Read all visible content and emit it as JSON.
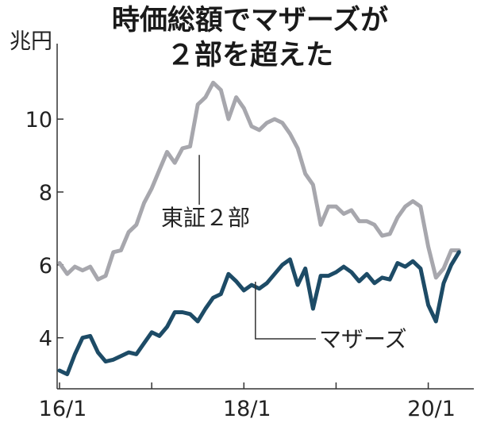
{
  "chart_data": {
    "type": "line",
    "title_line1": "時価総額でマザーズが",
    "title_line2": "２部を超えた",
    "unit": "兆円",
    "x_ticks": [
      "16/1",
      "18/1",
      "20/1"
    ],
    "y_ticks": [
      4,
      6,
      8,
      10
    ],
    "ylim": [
      2.6,
      11.2
    ],
    "x_range_months": [
      0,
      53
    ],
    "grid": false,
    "series": [
      {
        "name": "東証２部",
        "color": "#a7a7ad",
        "x": [
          0,
          1,
          2,
          3,
          4,
          5,
          6,
          7,
          8,
          9,
          10,
          11,
          12,
          13,
          14,
          15,
          16,
          17,
          18,
          19,
          20,
          21,
          22,
          23,
          24,
          25,
          26,
          27,
          28,
          29,
          30,
          31,
          32,
          33,
          34,
          35,
          36,
          37,
          38,
          39,
          40,
          41,
          42,
          43,
          44,
          45,
          46,
          47,
          48,
          49,
          50,
          51,
          52
        ],
        "values": [
          6.05,
          5.75,
          5.95,
          5.85,
          5.95,
          5.6,
          5.7,
          6.35,
          6.4,
          6.9,
          7.1,
          7.7,
          8.1,
          8.6,
          9.1,
          8.8,
          9.2,
          9.25,
          10.4,
          10.6,
          11.0,
          10.8,
          10.0,
          10.6,
          10.3,
          9.8,
          9.7,
          9.9,
          10.0,
          9.9,
          9.6,
          9.2,
          8.5,
          8.2,
          7.1,
          7.6,
          7.6,
          7.4,
          7.5,
          7.2,
          7.2,
          7.1,
          6.8,
          6.85,
          7.3,
          7.6,
          7.75,
          7.6,
          6.5,
          5.65,
          5.9,
          6.4,
          6.4
        ]
      },
      {
        "name": "マザーズ",
        "color": "#1d4b66",
        "x": [
          0,
          1,
          2,
          3,
          4,
          5,
          6,
          7,
          8,
          9,
          10,
          11,
          12,
          13,
          14,
          15,
          16,
          17,
          18,
          19,
          20,
          21,
          22,
          23,
          24,
          25,
          26,
          27,
          28,
          29,
          30,
          31,
          32,
          33,
          34,
          35,
          36,
          37,
          38,
          39,
          40,
          41,
          42,
          43,
          44,
          45,
          46,
          47,
          48,
          49,
          50,
          51,
          52
        ],
        "values": [
          3.1,
          3.0,
          3.55,
          4.0,
          4.05,
          3.6,
          3.35,
          3.4,
          3.5,
          3.6,
          3.55,
          3.85,
          4.15,
          4.05,
          4.3,
          4.7,
          4.7,
          4.65,
          4.45,
          4.8,
          5.1,
          5.2,
          5.75,
          5.55,
          5.3,
          5.45,
          5.35,
          5.5,
          5.75,
          6.0,
          6.15,
          5.45,
          5.9,
          4.8,
          5.7,
          5.7,
          5.8,
          5.95,
          5.8,
          5.55,
          5.75,
          5.5,
          5.65,
          5.6,
          6.05,
          5.95,
          6.1,
          5.9,
          4.9,
          4.45,
          5.5,
          6.0,
          6.35
        ]
      }
    ],
    "annotations": [
      {
        "text": "東証２部",
        "series": "東証２部"
      },
      {
        "text": "マザーズ",
        "series": "マザーズ"
      }
    ]
  }
}
